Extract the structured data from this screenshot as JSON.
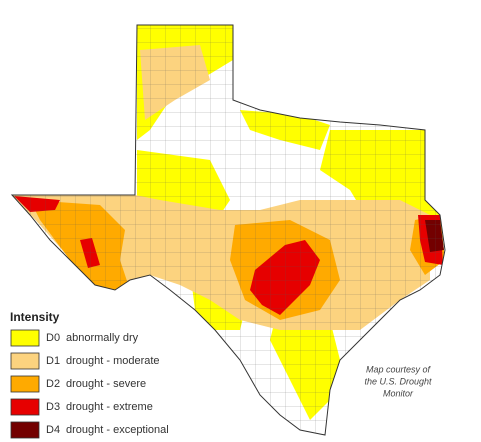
{
  "legend": {
    "title": "Intensity",
    "items": [
      {
        "code": "D0",
        "label": "abnormally dry",
        "color": "#ffff00"
      },
      {
        "code": "D1",
        "label": "drought - moderate",
        "color": "#fcd37f"
      },
      {
        "code": "D2",
        "label": "drought - severe",
        "color": "#ffaa00"
      },
      {
        "code": "D3",
        "label": "drought - extreme",
        "color": "#e60000"
      },
      {
        "code": "D4",
        "label": "drought - exceptional",
        "color": "#730000"
      }
    ]
  },
  "credit": [
    "Map courtesy of",
    "the U.S. Drought",
    "Monitor"
  ]
}
